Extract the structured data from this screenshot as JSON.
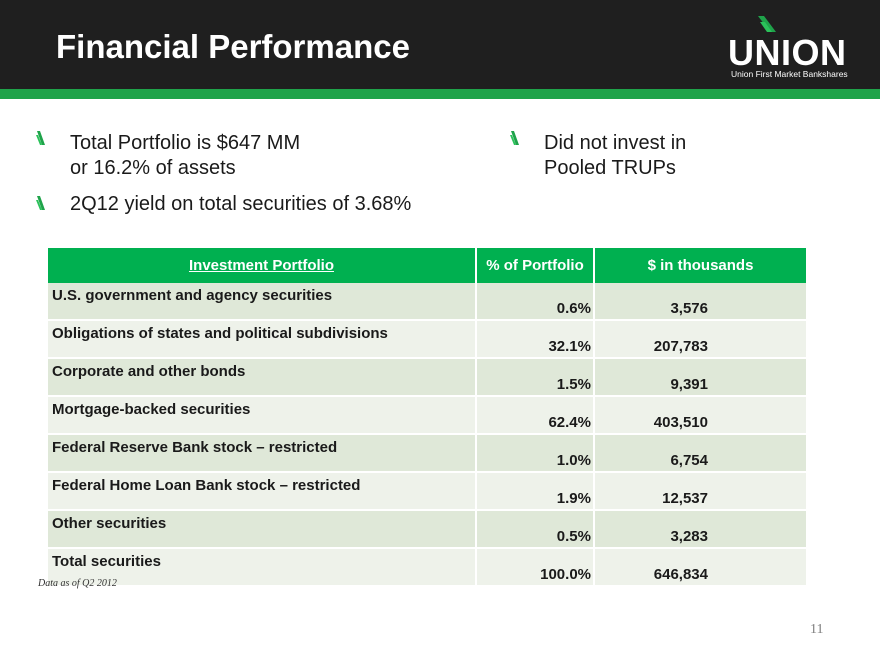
{
  "header": {
    "title": "Financial Performance",
    "logo_text": "UNION",
    "logo_subtitle": "Union First Market Bankshares"
  },
  "bullets_left": [
    {
      "line1": "Total Portfolio is $647 MM",
      "line2": "or 16.2% of assets"
    },
    {
      "line1": "2Q12 yield on total securities of 3.68%"
    }
  ],
  "bullets_right": [
    {
      "line1": "Did not invest in",
      "line2": "Pooled TRUPs"
    }
  ],
  "table": {
    "headers": [
      "Investment Portfolio",
      "% of Portfolio",
      "$ in thousands"
    ],
    "rows": [
      {
        "name": "U.S. government and agency securities",
        "pct": "0.6%",
        "amount": "3,576"
      },
      {
        "name": "Obligations of states and political subdivisions",
        "pct": "32.1%",
        "amount": "207,783"
      },
      {
        "name": "Corporate and other bonds",
        "pct": "1.5%",
        "amount": "9,391"
      },
      {
        "name": "Mortgage-backed securities",
        "pct": "62.4%",
        "amount": "403,510"
      },
      {
        "name": "Federal Reserve Bank stock – restricted",
        "pct": "1.0%",
        "amount": "6,754"
      },
      {
        "name": "Federal Home Loan Bank stock – restricted",
        "pct": "1.9%",
        "amount": "12,537"
      },
      {
        "name": "Other securities",
        "pct": "0.5%",
        "amount": "3,283"
      },
      {
        "name": "Total securities",
        "pct": "100.0%",
        "amount": "646,834"
      }
    ]
  },
  "footnote": "Data as of Q2 2012",
  "page_number": "11",
  "colors": {
    "header_bg": "#1f1f1f",
    "accent_green": "#1fa34a",
    "table_header_green": "#00b050",
    "row_odd": "#dfe8d8",
    "row_even": "#eef2ea"
  }
}
